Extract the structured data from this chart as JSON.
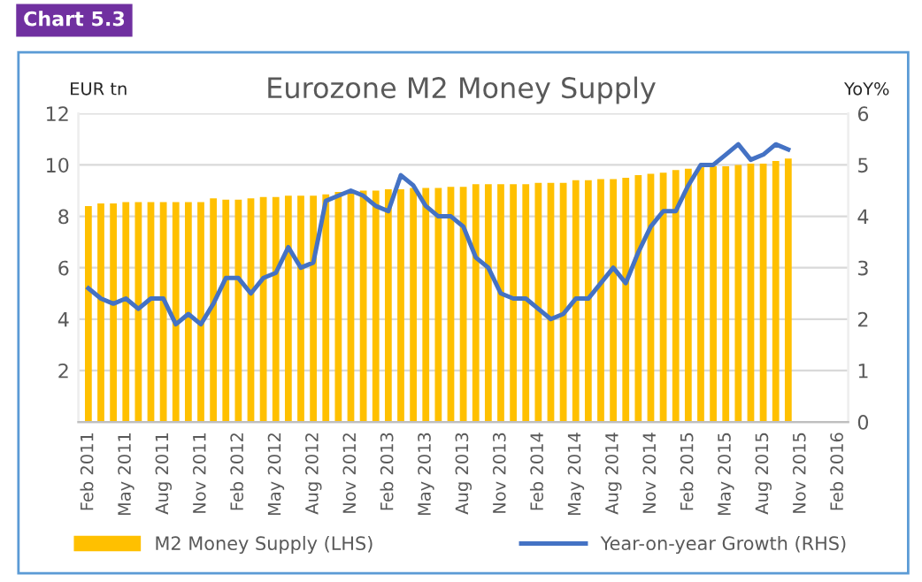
{
  "chart_data": {
    "type": "bar",
    "title": "Eurozone M2 Money Supply",
    "ylabel": "EUR tn",
    "y2label": "YoY%",
    "annotations": [
      "Chart 5.3"
    ],
    "categories": [
      "Feb 2011",
      null,
      null,
      "May 2011",
      null,
      null,
      "Aug 2011",
      null,
      null,
      "Nov 2011",
      null,
      null,
      "Feb 2012",
      null,
      null,
      "May 2012",
      null,
      null,
      "Aug 2012",
      null,
      null,
      "Nov 2012",
      null,
      null,
      "Feb 2013",
      null,
      null,
      "May 2013",
      null,
      null,
      "Aug 2013",
      null,
      null,
      "Nov 2013",
      null,
      null,
      "Feb 2014",
      null,
      null,
      "May 2014",
      null,
      null,
      "Aug 2014",
      null,
      null,
      "Nov 2014",
      null,
      null,
      "Feb 2015",
      null,
      null,
      "May 2015",
      null,
      null,
      "Aug 2015",
      null,
      null,
      "Nov 2015",
      null,
      null,
      "Feb 2016"
    ],
    "series": [
      {
        "name": "M2 Money Supply (LHS)",
        "color": "#ffc000",
        "values": [
          8.4,
          8.5,
          8.5,
          8.55,
          8.55,
          8.55,
          8.55,
          8.55,
          8.55,
          8.55,
          8.7,
          8.65,
          8.65,
          8.7,
          8.75,
          8.75,
          8.8,
          8.8,
          8.8,
          8.85,
          8.95,
          8.95,
          9.0,
          9.0,
          9.05,
          9.05,
          9.1,
          9.1,
          9.1,
          9.15,
          9.15,
          9.25,
          9.25,
          9.25,
          9.25,
          9.25,
          9.3,
          9.3,
          9.3,
          9.4,
          9.4,
          9.45,
          9.45,
          9.5,
          9.6,
          9.65,
          9.7,
          9.8,
          9.85,
          9.95,
          9.95,
          9.95,
          10.0,
          10.05,
          10.05,
          10.15,
          10.25,
          null,
          null,
          null,
          null
        ]
      },
      {
        "name": "Year-on-year Growth (RHS)",
        "type": "line",
        "axis": "y2",
        "color": "#4472c4",
        "values": [
          2.6,
          2.4,
          2.3,
          2.4,
          2.2,
          2.4,
          2.4,
          1.9,
          2.1,
          1.9,
          2.3,
          2.8,
          2.8,
          2.5,
          2.8,
          2.9,
          3.4,
          3.0,
          3.1,
          4.3,
          4.4,
          4.5,
          4.4,
          4.2,
          4.1,
          4.8,
          4.6,
          4.2,
          4.0,
          4.0,
          3.8,
          3.2,
          3.0,
          2.5,
          2.4,
          2.4,
          2.2,
          2.0,
          2.1,
          2.4,
          2.4,
          2.7,
          3.0,
          2.7,
          3.3,
          3.8,
          4.1,
          4.1,
          4.6,
          5.0,
          5.0,
          5.2,
          5.4,
          5.1,
          5.2,
          5.4,
          5.3,
          null,
          null,
          null,
          null
        ]
      }
    ],
    "ylim": [
      0,
      12
    ],
    "yticks": [
      2,
      4,
      6,
      8,
      10,
      12
    ],
    "y2lim": [
      0,
      6
    ],
    "y2ticks": [
      0,
      1,
      2,
      3,
      4,
      5,
      6
    ],
    "grid": "y",
    "legend": "bottom",
    "marker": "none",
    "line_style": "solid"
  }
}
